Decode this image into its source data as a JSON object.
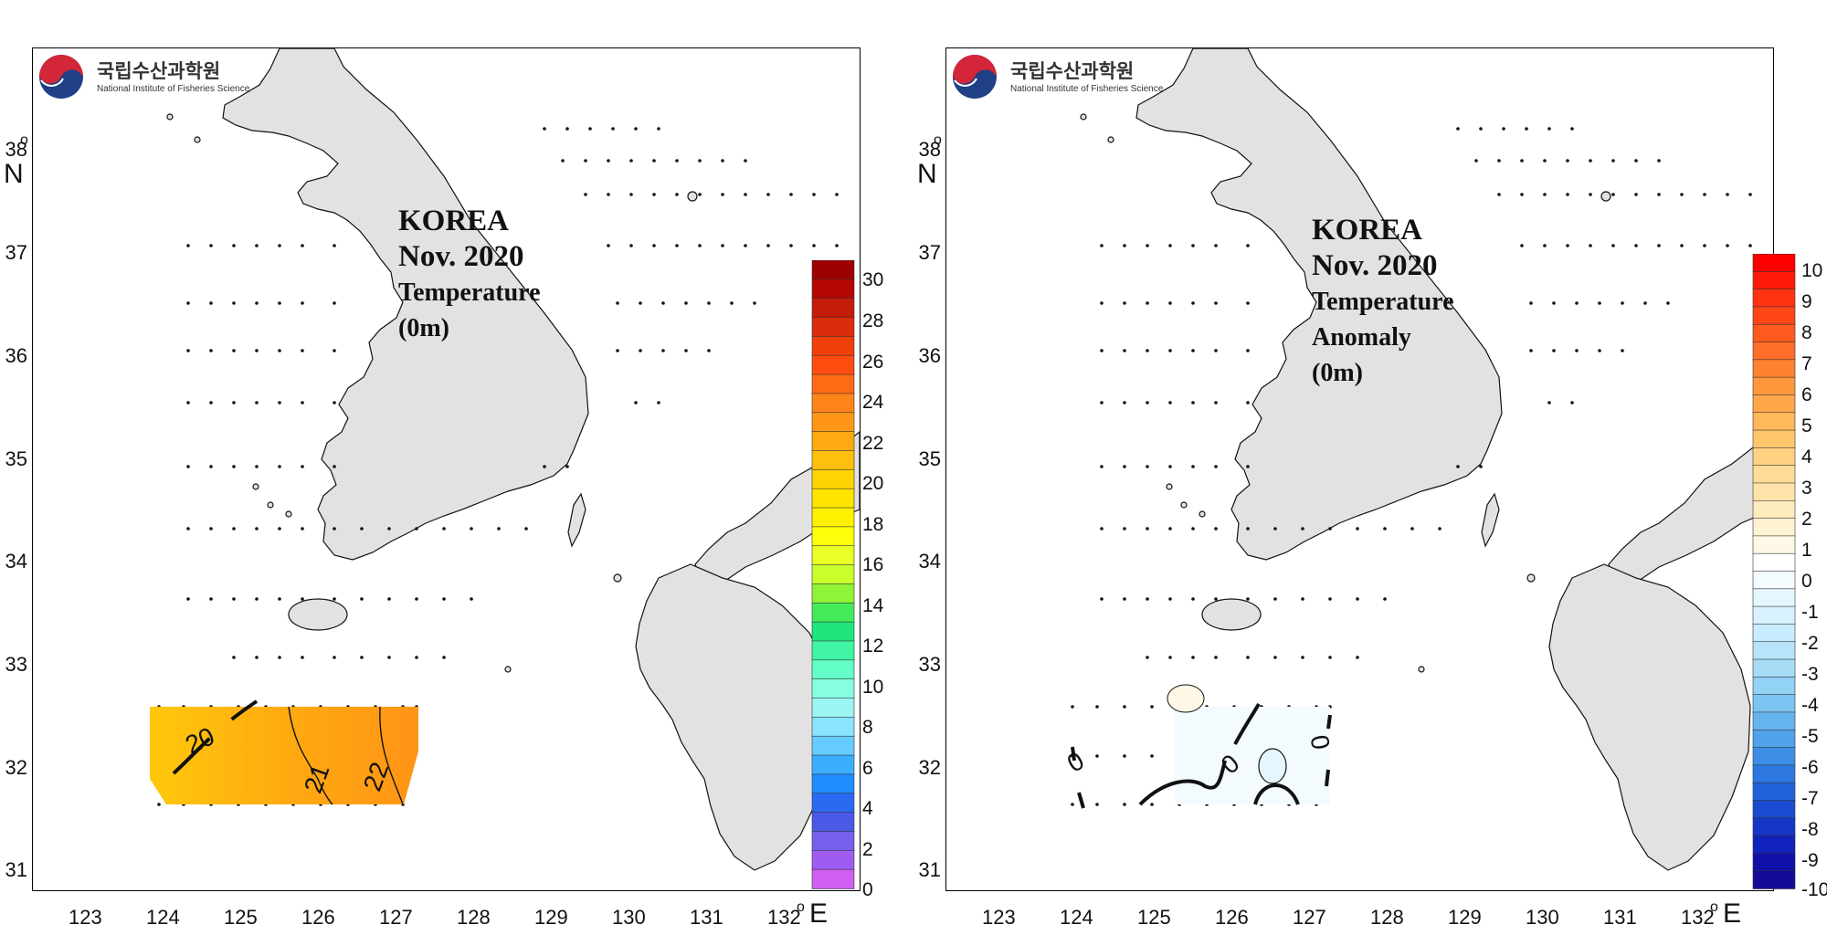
{
  "logo": {
    "korean": "국립수산과학원",
    "english": "National Institute of Fisheries Science"
  },
  "axes": {
    "y_ticks": [
      "38",
      "37",
      "36",
      "35",
      "34",
      "33",
      "32",
      "31"
    ],
    "x_ticks": [
      "123",
      "124",
      "125",
      "126",
      "127",
      "128",
      "129",
      "130",
      "131",
      "132"
    ],
    "y_unit": "N",
    "x_unit": "E",
    "deg_symbol": "o"
  },
  "left_map": {
    "title_line1": "KOREA",
    "title_line2": "Nov. 2020",
    "title_line3": "Temperature",
    "title_line4": "(0m)",
    "contour_labels": [
      "20",
      "21",
      "22"
    ],
    "colorbar_labels": [
      "30",
      "28",
      "26",
      "24",
      "22",
      "20",
      "18",
      "16",
      "14",
      "12",
      "10",
      "8",
      "6",
      "4",
      "2",
      "0"
    ],
    "colorbar_colors": [
      "#9e0000",
      "#b50505",
      "#c51b0a",
      "#d92d0c",
      "#ee3f0b",
      "#ff4d0f",
      "#ff6a14",
      "#ff8419",
      "#ff9618",
      "#ffa912",
      "#ffbf0d",
      "#ffd405",
      "#ffe500",
      "#fff200",
      "#fbff0a",
      "#e9ff25",
      "#c9ff2d",
      "#8ff337",
      "#45ea5a",
      "#1fe57b",
      "#40f5a4",
      "#63ffc6",
      "#86ffe0",
      "#9cf5f2",
      "#8ae3ff",
      "#66ccff",
      "#3aafff",
      "#1f8cff",
      "#2a69f2",
      "#4a5ae6",
      "#7560ec",
      "#a05cf0",
      "#cf5ff2"
    ]
  },
  "right_map": {
    "title_line1": "KOREA",
    "title_line2": "Nov. 2020",
    "title_line3": "Temperature",
    "title_line4": "Anomaly",
    "title_line5": "(0m)",
    "contour_labels": [
      "0",
      "0",
      "0",
      "0"
    ],
    "colorbar_labels": [
      "10",
      "9",
      "8",
      "7",
      "6",
      "5",
      "4",
      "3",
      "2",
      "1",
      "0",
      "-1",
      "-2",
      "-3",
      "-4",
      "-5",
      "-6",
      "-7",
      "-8",
      "-9",
      "-10"
    ],
    "colorbar_colors": [
      "#ff0000",
      "#ff1a0a",
      "#ff3212",
      "#ff4618",
      "#ff5a1e",
      "#ff6e28",
      "#ff8232",
      "#ff963c",
      "#ffa84a",
      "#ffb85a",
      "#ffc66e",
      "#ffd282",
      "#ffdc96",
      "#ffe4aa",
      "#ffecbe",
      "#fff2d2",
      "#fff8e6",
      "#ffffff",
      "#f4fbff",
      "#e6f6ff",
      "#d8f2ff",
      "#c8ecff",
      "#b8e4fa",
      "#a6dcf6",
      "#92d2f4",
      "#7cc4f2",
      "#66b4ef",
      "#50a2ea",
      "#3c8ee6",
      "#2c78e0",
      "#2062da",
      "#1a4cd2",
      "#1636c8",
      "#1222bc",
      "#1010aa",
      "#120c96"
    ]
  },
  "colors": {
    "land": "#e2e2e2",
    "coast": "#111111",
    "ocean": "#ffffff"
  }
}
